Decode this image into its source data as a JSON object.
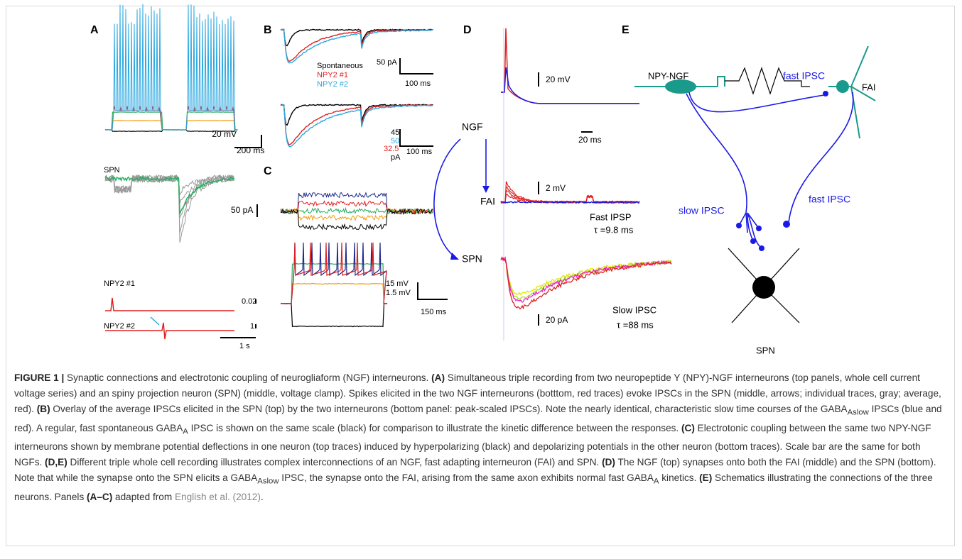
{
  "figure": {
    "panel_letters": [
      "A",
      "B",
      "C",
      "D",
      "E"
    ],
    "panel_a": {
      "scale_mv": "20 mV",
      "scale_ms": "200 ms",
      "spn": "SPN",
      "scale_pa": "50 pA",
      "npy1": "NPY2 #1",
      "npy1_scale": "0.02",
      "npy2": "NPY2 #2",
      "npy2_scale": "1",
      "scale_s": "1 s"
    },
    "panel_b": {
      "legend": [
        "Spontaneous",
        "NPY2 #1",
        "NPY2 #2"
      ],
      "scale_pa": "50 pA",
      "scale_ms": "100 ms",
      "scaled": [
        "45",
        "50",
        "32.5",
        "pA"
      ],
      "scale_ms2": "100 ms"
    },
    "panel_c": {
      "scale_mv1": "15 mV",
      "scale_mv2": "1.5 mV",
      "scale_ms": "150 ms"
    },
    "panel_d": {
      "ngf": "NGF",
      "fai": "FAI",
      "spn": "SPN",
      "scale_mv": "20 mV",
      "scale_ms": "20 ms",
      "scale_mv2": "2 mV",
      "fast": "Fast IPSP",
      "fast_tau": "τ =9.8 ms",
      "slow": "Slow IPSC",
      "slow_tau": "τ =88 ms",
      "scale_pa": "20 pA"
    },
    "panel_e": {
      "npy_ngf": "NPY-NGF",
      "fast_ipsc_top": "fast IPSC",
      "fai": "FAI",
      "slow_ipsc": "slow IPSC",
      "fast_ipsc": "fast IPSC",
      "spn": "SPN"
    }
  },
  "caption": {
    "runs": [
      {
        "t": "FIGURE 1 |",
        "b": true
      },
      {
        "t": " Synaptic connections and electrotonic coupling of neurogliaform (NGF) interneurons. "
      },
      {
        "t": "(A)",
        "b": true
      },
      {
        "t": " Simultaneous triple recording from two neuropeptide Y (NPY)-NGF interneurons (top panels, whole cell current voltage series) and an spiny projection neuron (SPN) (middle, voltage clamp). Spikes elicited in the two NGF interneurons (botttom, red traces) evoke IPSCs in the SPN (middle, arrows; individual traces, gray; average, red). "
      },
      {
        "t": "(B)",
        "b": true
      },
      {
        "t": " Overlay of the average IPSCs elicited in the SPN (top) by the two interneurons (bottom panel: peak-scaled IPSCs). Note the nearly identical, characteristic slow time courses of the GABA"
      },
      {
        "t": "Aslow",
        "sub": true
      },
      {
        "t": " IPSCs (blue and red). A regular, fast spontaneous GABA"
      },
      {
        "t": "A",
        "sub": true
      },
      {
        "t": " IPSC is shown on the same scale (black) for comparison to illustrate the kinetic difference between the responses. "
      },
      {
        "t": "(C)",
        "b": true
      },
      {
        "t": " Electrotonic coupling between the same two NPY-NGF interneurons shown by membrane potential deflections in one neuron (top traces) induced by hyperpolarizing (black) and depolarizing potentials in the other neuron (bottom traces). Scale bar are the same for both NGFs. "
      },
      {
        "t": "(D,E)",
        "b": true
      },
      {
        "t": " Different triple whole cell recording illustrates complex interconnections of an NGF, fast adapting interneuron (FAI) and SPN. "
      },
      {
        "t": "(D)",
        "b": true
      },
      {
        "t": " The NGF (top) synapses onto both the FAI (middle) and the SPN (bottom). Note that while the synapse onto the SPN elicits a GABA"
      },
      {
        "t": "Aslow",
        "sub": true
      },
      {
        "t": " IPSC, the synapse onto the FAI, arising from the same axon exhibits normal fast GABA"
      },
      {
        "t": "A",
        "sub": true
      },
      {
        "t": " kinetics. "
      },
      {
        "t": "(E)",
        "b": true
      },
      {
        "t": " Schematics illustrating the connections of the three neurons. Panels "
      },
      {
        "t": "(A–C)",
        "b": true
      },
      {
        "t": " adapted from "
      },
      {
        "t": "English et al. (2012)",
        "link": true
      },
      {
        "t": "."
      }
    ]
  }
}
